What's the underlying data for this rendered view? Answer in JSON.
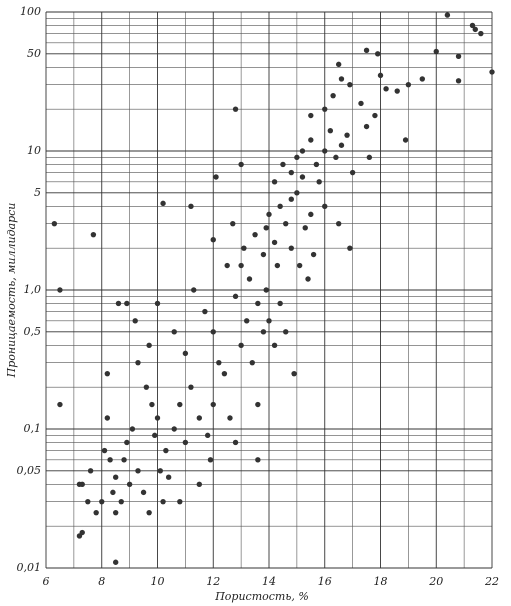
{
  "chart_data": {
    "type": "scatter",
    "xlabel": "Пористость, %",
    "ylabel": "Проницаемость, миллидарси",
    "xlim": [
      6,
      22
    ],
    "ylim": [
      0.01,
      100
    ],
    "ylog": true,
    "grid": true,
    "color": "#333333",
    "xticks": [
      6,
      8,
      10,
      12,
      14,
      16,
      18,
      20,
      22
    ],
    "yticks": [
      {
        "value": 0.01,
        "label": "0,01"
      },
      {
        "value": 0.05,
        "label": "0,05"
      },
      {
        "value": 0.1,
        "label": "0,1"
      },
      {
        "value": 0.5,
        "label": "0,5"
      },
      {
        "value": 1,
        "label": "1,0"
      },
      5,
      10,
      50,
      100
    ],
    "x_minor_grid": [
      7,
      9,
      11,
      13,
      15,
      17,
      19,
      21
    ],
    "y_minor_grid": [
      0.02,
      0.03,
      0.04,
      0.06,
      0.07,
      0.08,
      0.09,
      0.2,
      0.3,
      0.4,
      0.6,
      0.7,
      0.8,
      0.9,
      2,
      3,
      4,
      6,
      7,
      8,
      9,
      20,
      30,
      40,
      60,
      70,
      80,
      90
    ],
    "x": [
      6.3,
      6.5,
      6.5,
      7.7,
      7.3,
      7.2,
      8.5,
      10.2,
      12.8,
      13.0,
      12.1,
      20.4,
      21.3,
      21.4,
      21.6,
      22.0,
      20.8,
      20.0,
      20.8,
      19.5,
      19.0,
      18.2,
      18.6,
      17.5,
      17.9,
      16.5,
      16.6,
      18.9,
      7.2,
      7.3,
      7.6,
      7.8,
      8.1,
      8.0,
      8.2,
      8.3,
      8.4,
      8.5,
      8.7,
      8.8,
      8.9,
      9.0,
      9.1,
      9.3,
      9.5,
      9.6,
      9.8,
      9.9,
      10.0,
      10.1,
      10.2,
      10.3,
      10.4,
      10.6,
      10.8,
      11.0,
      8.2,
      8.6,
      8.9,
      9.3,
      9.2,
      9.7,
      10.0,
      10.6,
      11.0,
      11.2,
      11.5,
      11.8,
      12.0,
      12.2,
      11.3,
      11.7,
      12.0,
      12.4,
      12.6,
      12.8,
      13.0,
      13.2,
      13.4,
      13.6,
      13.8,
      12.8,
      13.0,
      13.3,
      13.6,
      13.9,
      14.0,
      14.2,
      14.4,
      14.6,
      12.7,
      13.1,
      13.5,
      13.8,
      14.0,
      14.2,
      14.4,
      14.6,
      14.8,
      15.0,
      15.1,
      15.3,
      15.5,
      15.6,
      15.8,
      16.0,
      14.2,
      14.5,
      14.8,
      15.0,
      15.2,
      15.5,
      15.7,
      16.0,
      16.2,
      16.4,
      16.6,
      16.8,
      17.0,
      15.5,
      16.0,
      16.3,
      16.9,
      17.3,
      17.8,
      15.2,
      14.8,
      14.3,
      13.9,
      15.4,
      16.5,
      12.5,
      12.0,
      11.2,
      14.9,
      13.6,
      11.9,
      11.5,
      10.8,
      9.7,
      8.5,
      7.5,
      17.5,
      18.0,
      17.6,
      16.9
    ],
    "values": [
      3,
      1.0,
      0.15,
      2.5,
      0.018,
      0.017,
      0.011,
      4.2,
      20,
      8,
      6.5,
      95,
      80,
      75,
      70,
      37,
      48,
      52,
      32,
      33,
      30,
      28,
      27,
      53,
      50,
      42,
      33,
      12,
      0.04,
      0.04,
      0.05,
      0.025,
      0.07,
      0.03,
      0.12,
      0.06,
      0.035,
      0.045,
      0.03,
      0.06,
      0.08,
      0.04,
      0.1,
      0.05,
      0.035,
      0.2,
      0.15,
      0.09,
      0.12,
      0.05,
      0.03,
      0.07,
      0.045,
      0.1,
      0.15,
      0.08,
      0.25,
      0.8,
      0.8,
      0.3,
      0.6,
      0.4,
      0.8,
      0.5,
      0.35,
      0.2,
      0.12,
      0.09,
      0.15,
      0.3,
      1.0,
      0.7,
      0.5,
      0.25,
      0.12,
      0.08,
      0.4,
      0.6,
      0.3,
      0.15,
      0.5,
      0.9,
      1.5,
      1.2,
      0.8,
      1.0,
      0.6,
      0.4,
      0.8,
      0.5,
      3,
      2,
      2.5,
      1.8,
      3.5,
      2.2,
      4,
      3,
      2,
      5,
      1.5,
      2.8,
      3.5,
      1.8,
      6,
      4,
      6,
      8,
      7,
      9,
      10,
      12,
      8,
      10,
      14,
      9,
      11,
      13,
      7,
      18,
      20,
      25,
      30,
      22,
      18,
      6.5,
      4.5,
      1.5,
      2.8,
      1.2,
      3,
      1.5,
      2.3,
      4,
      0.25,
      0.06,
      0.06,
      0.04,
      0.03,
      0.025,
      0.025,
      0.03,
      15,
      35,
      9,
      2
    ]
  }
}
